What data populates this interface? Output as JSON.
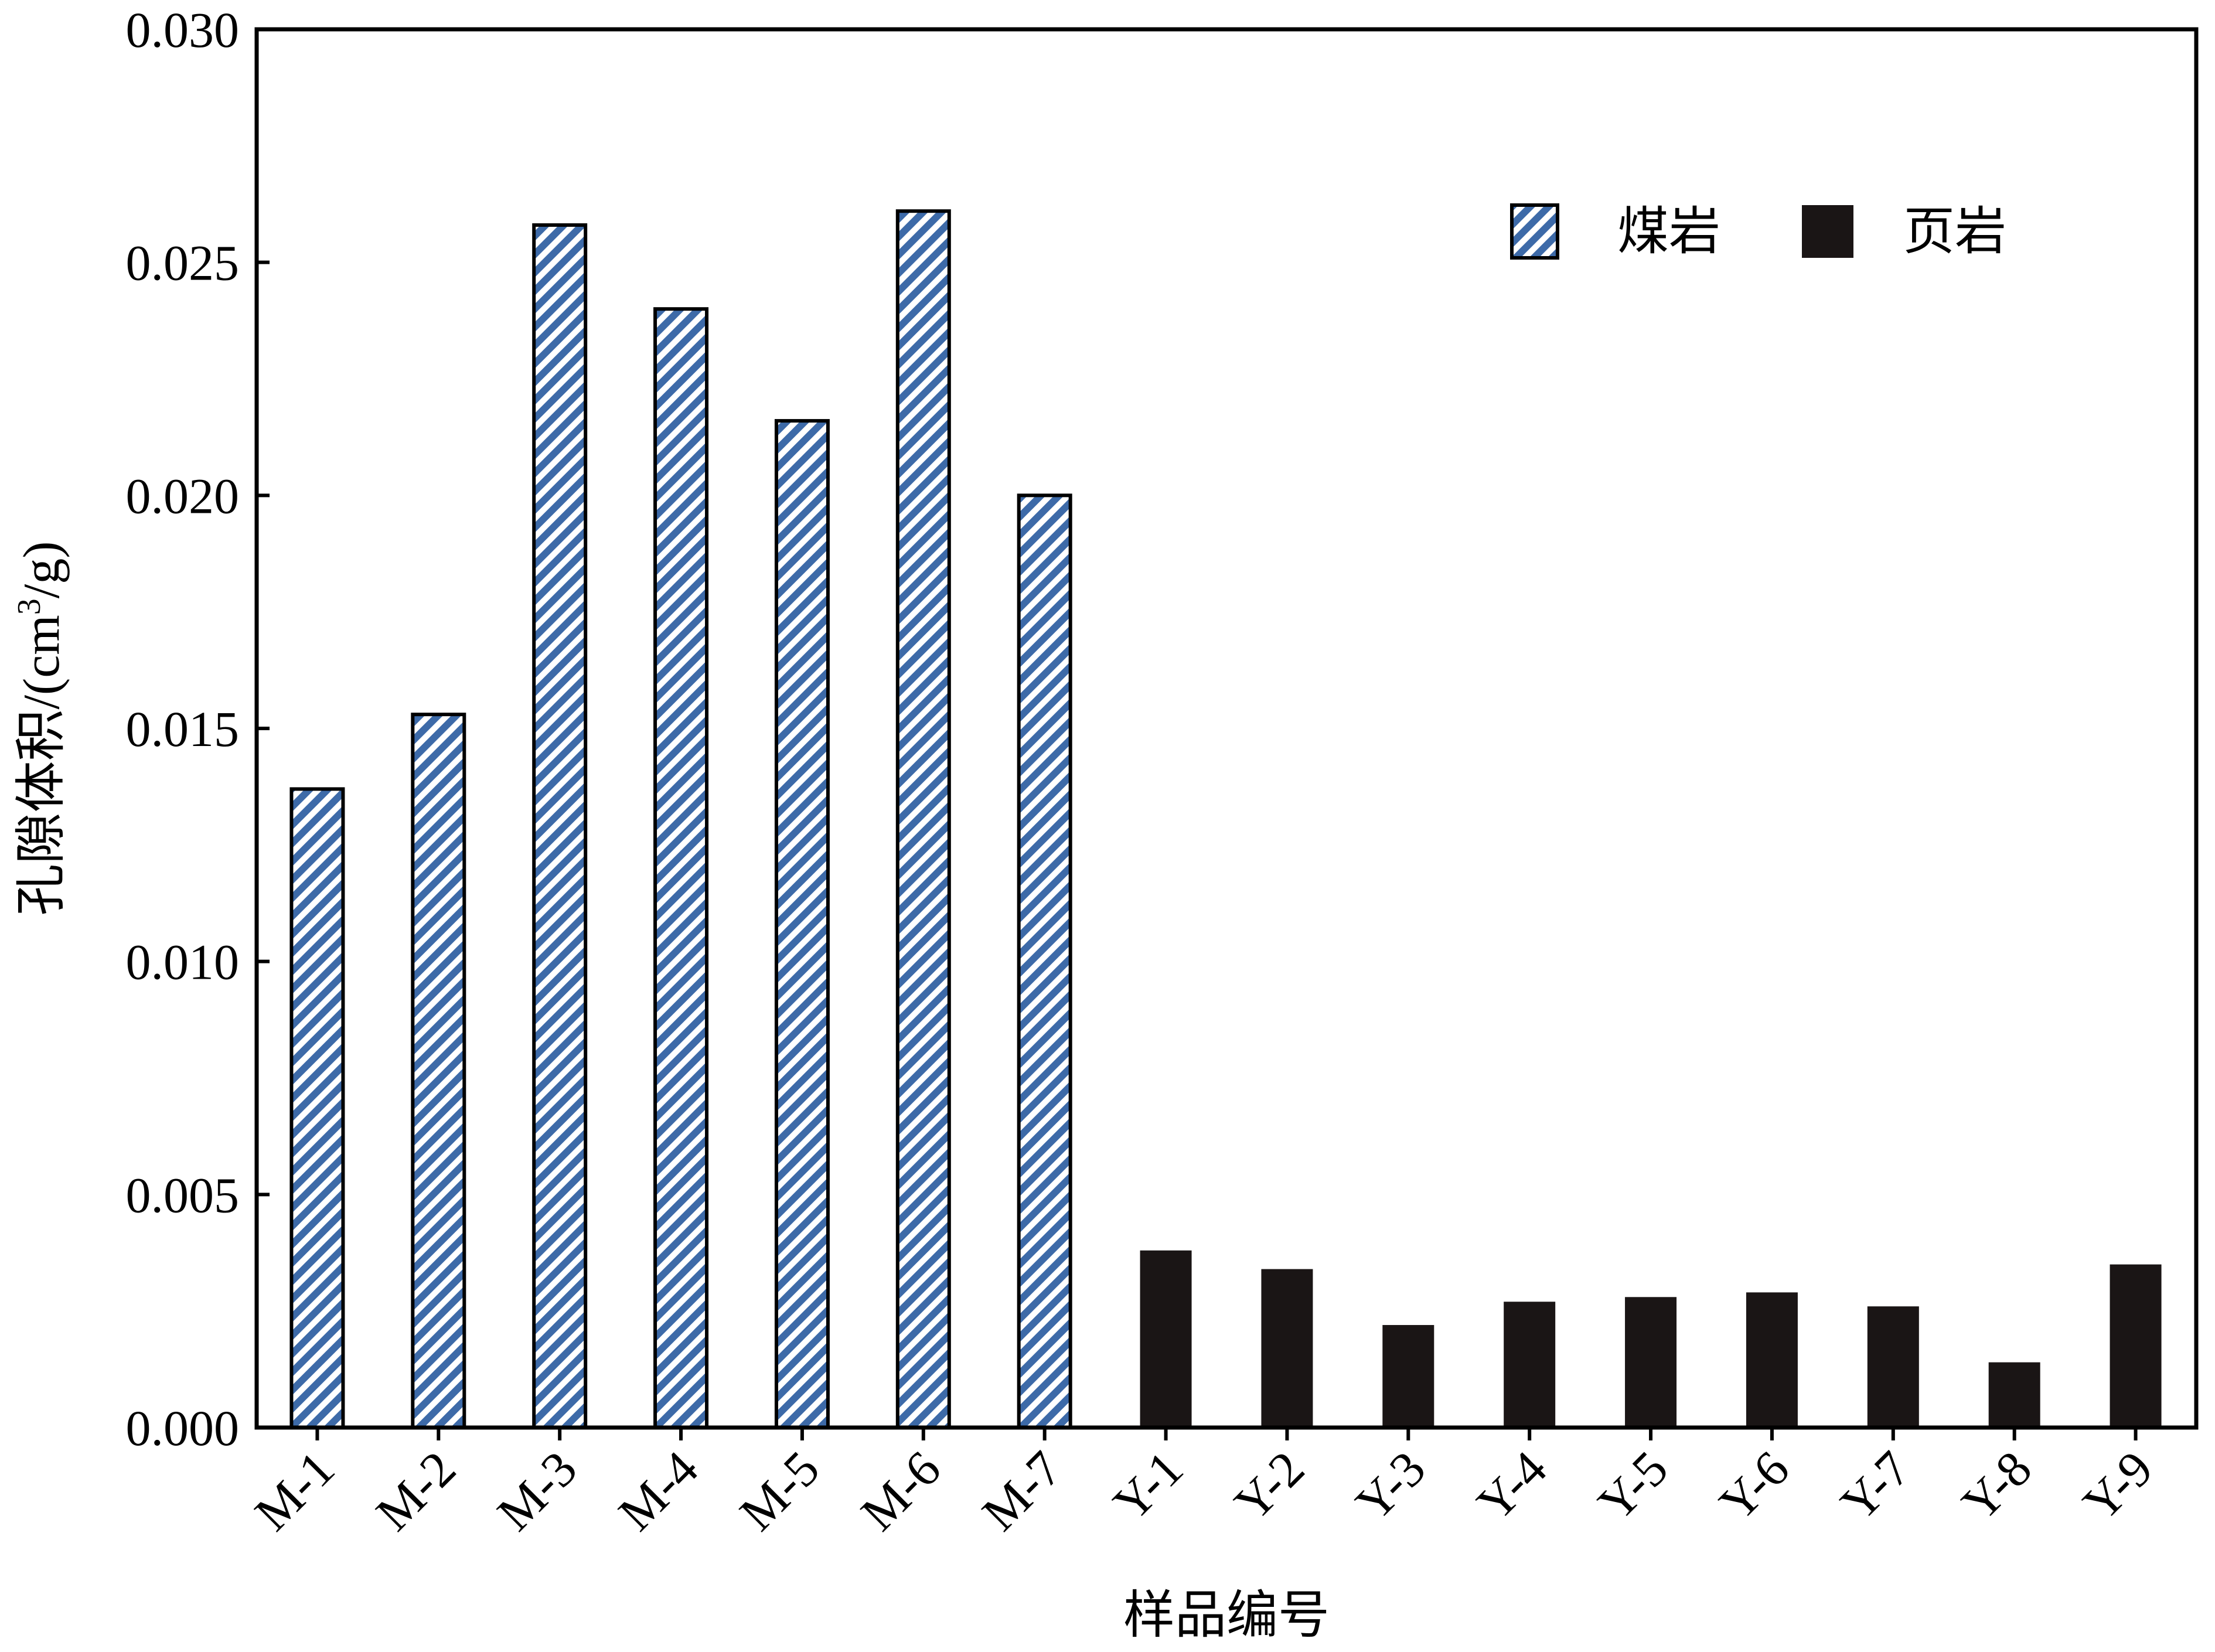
{
  "chart_data": {
    "type": "bar",
    "xlabel": "样品编号",
    "ylabel_prefix": "孔隙体积/(cm",
    "ylabel_sup": "3",
    "ylabel_suffix": "/g)",
    "ylim": [
      0,
      0.03
    ],
    "yticks": [
      "0.000",
      "0.005",
      "0.010",
      "0.015",
      "0.020",
      "0.025",
      "0.030"
    ],
    "grid": false,
    "legend_position": "top-right",
    "categories": [
      "M-1",
      "M-2",
      "M-3",
      "M-4",
      "M-5",
      "M-6",
      "M-7",
      "Y-1",
      "Y-2",
      "Y-3",
      "Y-4",
      "Y-5",
      "Y-6",
      "Y-7",
      "Y-8",
      "Y-9"
    ],
    "series": [
      {
        "name": "煤岩",
        "pattern": "diagonal-stripes",
        "color": "#3d6aa8",
        "values": [
          0.0137,
          0.0153,
          0.0258,
          0.024,
          0.0216,
          0.0261,
          0.02,
          null,
          null,
          null,
          null,
          null,
          null,
          null,
          null,
          null
        ]
      },
      {
        "name": "页岩",
        "pattern": "solid",
        "color": "#1a1515",
        "values": [
          null,
          null,
          null,
          null,
          null,
          null,
          null,
          0.0038,
          0.0034,
          0.0022,
          0.0027,
          0.0028,
          0.0029,
          0.0026,
          0.0014,
          0.0035
        ]
      }
    ]
  }
}
